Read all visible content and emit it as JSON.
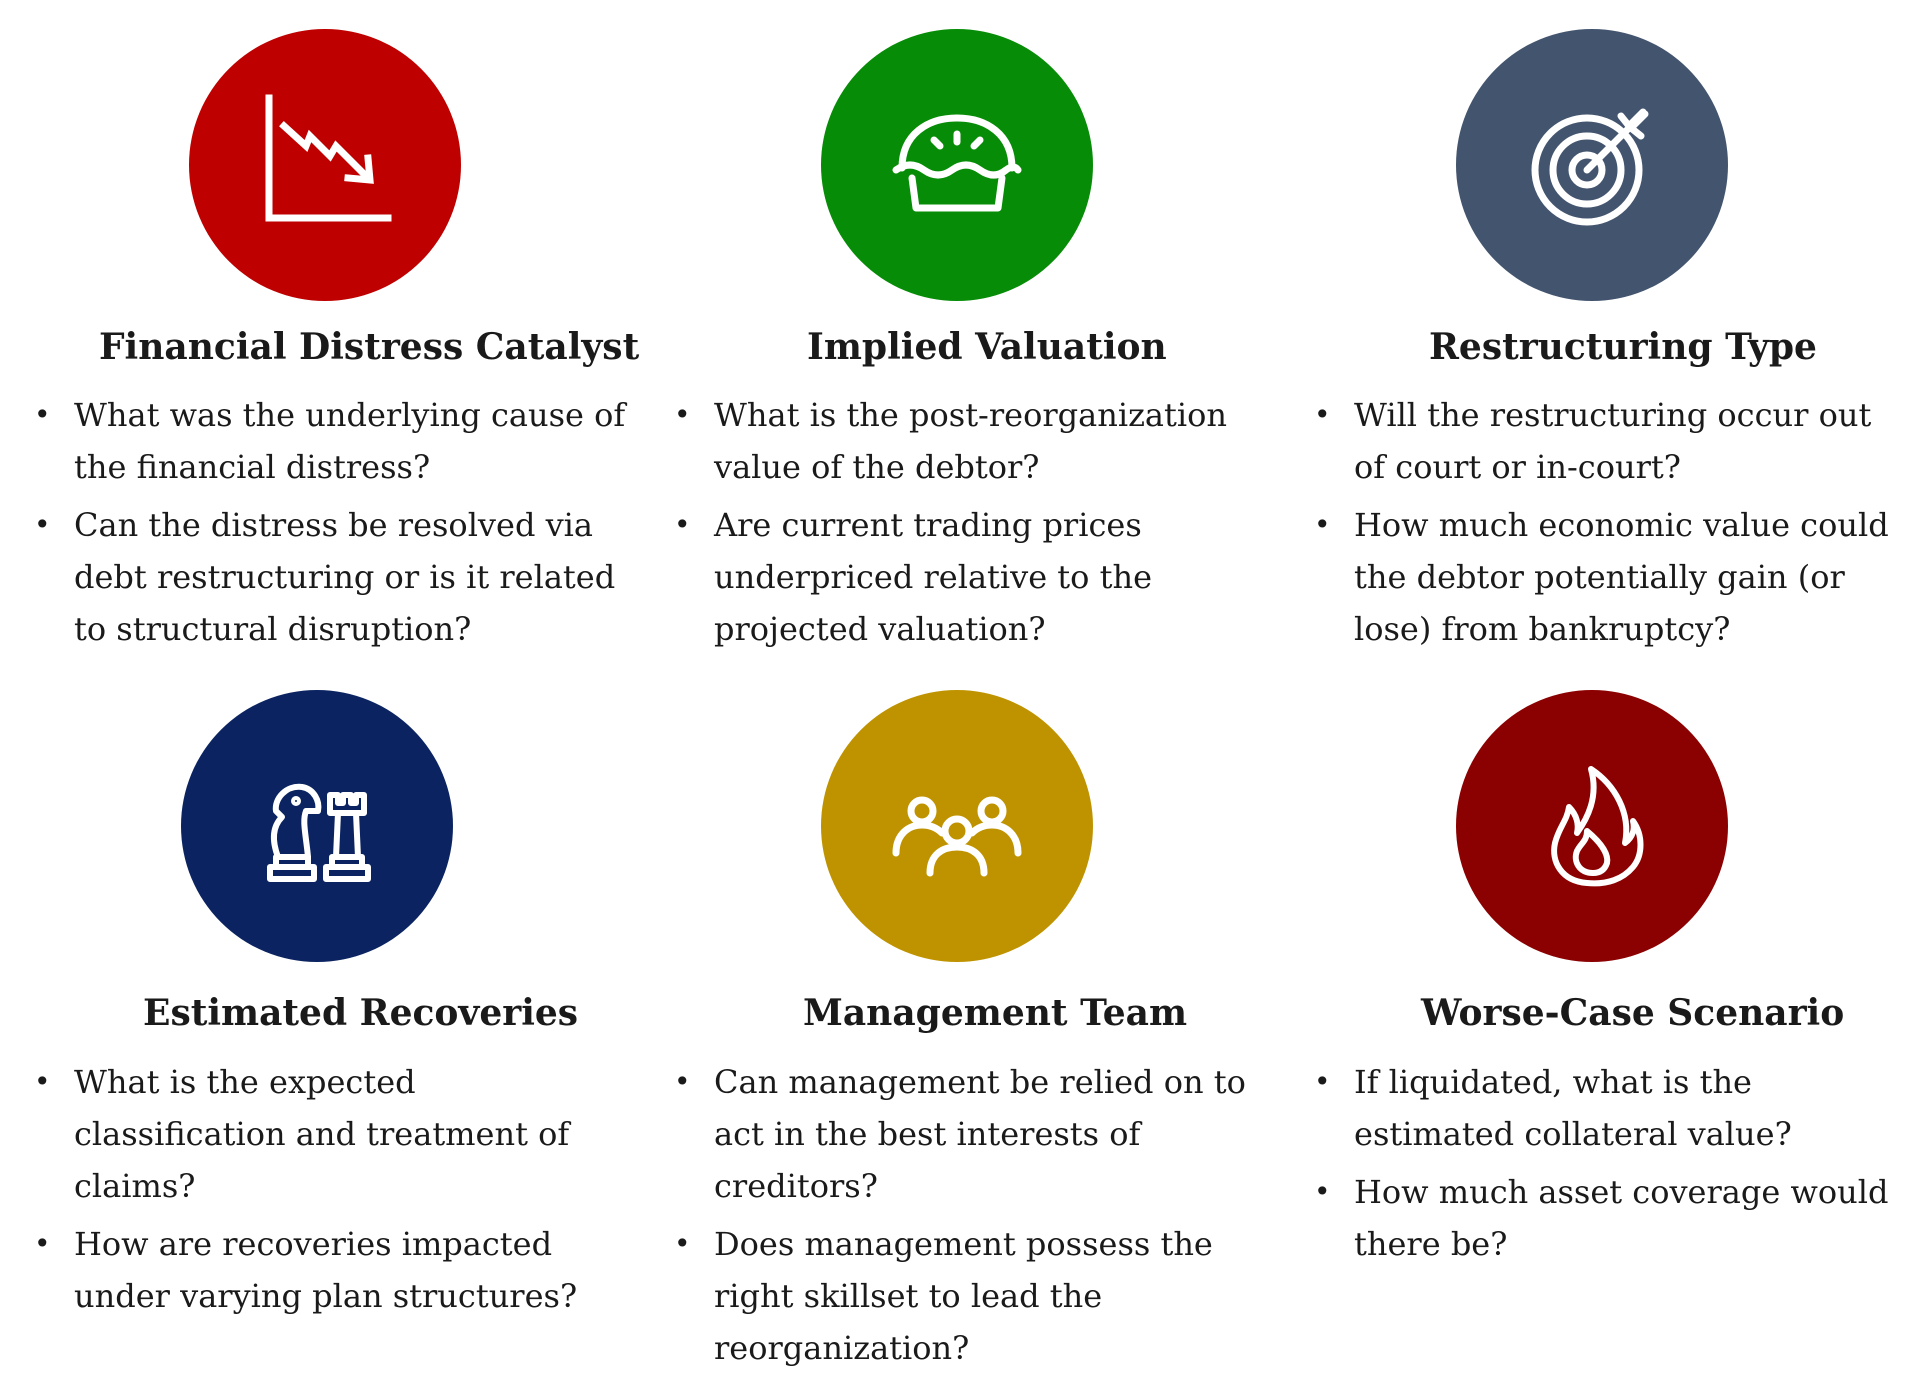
{
  "colors": {
    "red": "#be0000",
    "green": "#068c06",
    "slate": "#43546e",
    "navy": "#0b2461",
    "gold": "#bf9300",
    "darkred": "#8b0000",
    "icon_stroke": "#ffffff"
  },
  "cards": [
    {
      "icon": "downtrend-chart-icon",
      "title": "Financial Distress Catalyst",
      "bullets": [
        "What was the underlying cause of the financial distress?",
        "Can the distress be resolved via debt restructuring or is it related to structural disruption?"
      ]
    },
    {
      "icon": "pie-icon",
      "title": "Implied Valuation",
      "bullets": [
        "What is the post-reorganization value of the debtor?",
        "Are current trading prices underpriced relative to the projected valuation?"
      ]
    },
    {
      "icon": "target-arrow-icon",
      "title": "Restructuring Type",
      "bullets": [
        "Will the restructuring occur out of court or in-court?",
        "How much economic value could the debtor potentially gain (or lose) from bankruptcy?"
      ]
    },
    {
      "icon": "chess-pieces-icon",
      "title": "Estimated Recoveries",
      "bullets": [
        "What is the expected classification and treatment of claims?",
        "How are recoveries impacted under varying plan structures?"
      ]
    },
    {
      "icon": "team-people-icon",
      "title": "Management Team",
      "bullets": [
        "Can management be relied on to act in the best interests of creditors?",
        "Does management possess the right skillset to lead the reorganization?"
      ]
    },
    {
      "icon": "flame-icon",
      "title": "Worse-Case Scenario",
      "bullets": [
        "If liquidated, what is the estimated collateral value?",
        "How much asset coverage would there be?"
      ]
    }
  ]
}
